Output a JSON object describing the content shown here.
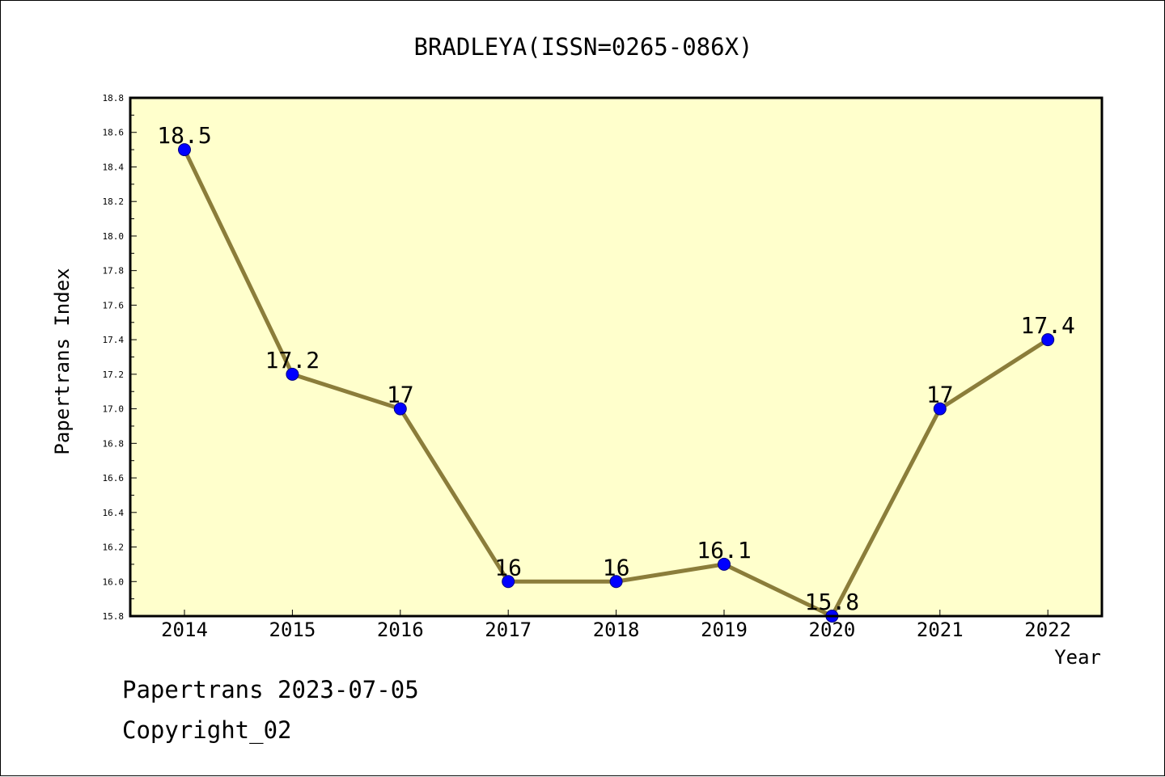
{
  "chart_data": {
    "type": "line",
    "title": "BRADLEYA(ISSN=0265-086X)",
    "xlabel": "Year",
    "ylabel": "Papertrans Index",
    "categories": [
      "2014",
      "2015",
      "2016",
      "2017",
      "2018",
      "2019",
      "2020",
      "2021",
      "2022"
    ],
    "series": [
      {
        "values": [
          18.5,
          17.2,
          17.0,
          16.0,
          16.0,
          16.1,
          15.8,
          17.0,
          17.4
        ],
        "data_labels": [
          "18.5",
          "17.2",
          "17",
          "16",
          "16",
          "16.1",
          "15.8",
          "17",
          "17.4"
        ]
      }
    ],
    "ylim": [
      15.8,
      18.8
    ],
    "y_ticks": [
      "15.8",
      "16.0",
      "16.2",
      "16.4",
      "16.6",
      "16.8",
      "17.0",
      "17.2",
      "17.4",
      "17.6",
      "17.8",
      "18.0",
      "18.2",
      "18.4",
      "18.6",
      "18.8"
    ],
    "grid": false,
    "legend": "none",
    "colors": {
      "plot_background": "#ffffcc",
      "line": "#8b7d3a",
      "marker": "#0000ff",
      "marker_edge": "#000080"
    }
  },
  "footer": {
    "line1": "Papertrans 2023-07-05",
    "line2": "Copyright_02"
  }
}
